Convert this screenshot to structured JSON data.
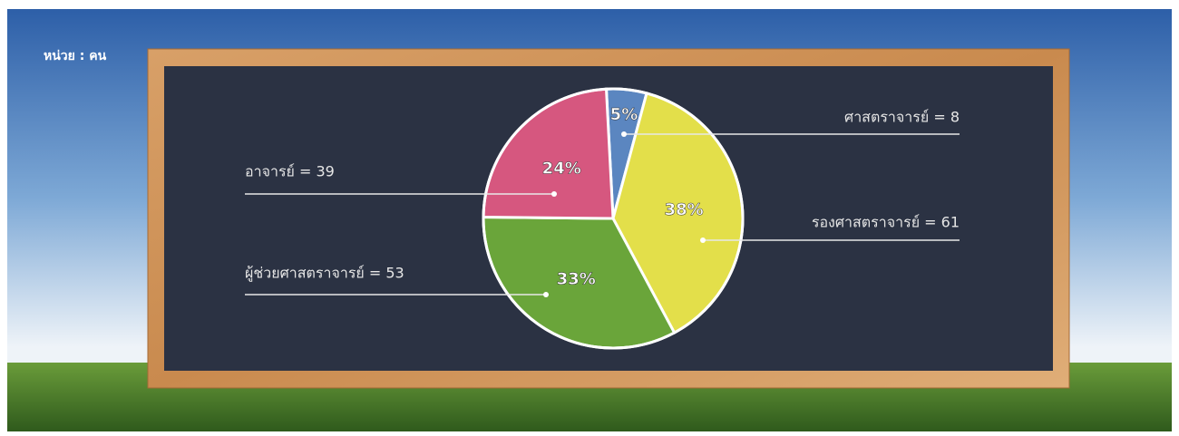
{
  "unit_label": "หน่วย : คน",
  "chart_data": {
    "type": "pie",
    "categories": [
      "ศาสตราจารย์ = 8",
      "รองศาสตราจารย์ = 61",
      "ผู้ช่วยศาสตราจารย์ = 53",
      "อาจารย์ = 39"
    ],
    "values": [
      5,
      38,
      33,
      24
    ],
    "value_labels": [
      "5%",
      "38%",
      "33%",
      "24%"
    ],
    "colors": [
      "#5b86c0",
      "#e3df4a",
      "#6aa53a",
      "#d6577f"
    ]
  }
}
